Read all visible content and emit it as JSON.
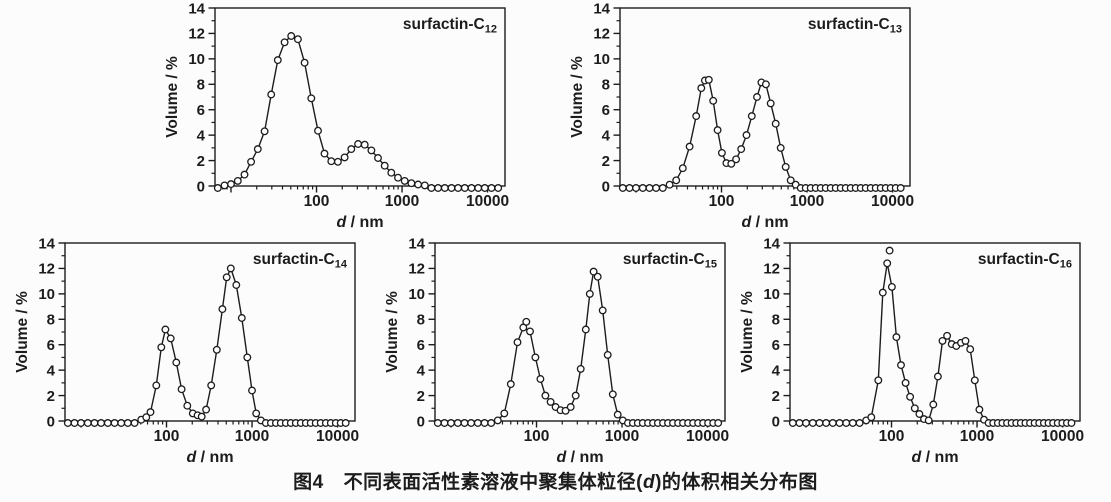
{
  "page": {
    "background": "#fcfcfc",
    "ink": "#1c1c1c"
  },
  "caption": {
    "label": "图4",
    "text_pre": "不同表面活性素溶液中聚集体粒径(",
    "d_symbol": "d",
    "text_post": ")的体积相关分布图"
  },
  "axes_common": {
    "ylabel": "Volume / %",
    "xlabel_d": "d",
    "xlabel_rest": " / nm",
    "yticks": [
      0,
      2,
      4,
      6,
      8,
      10,
      12,
      14
    ],
    "ytick_minor": [
      1,
      3,
      5,
      7,
      9,
      11,
      13
    ],
    "xtick_labeled": [
      100,
      1000,
      10000
    ],
    "xtick_major": [
      10,
      100,
      1000,
      10000
    ],
    "ylim": [
      0,
      14
    ],
    "xlim": [
      6.5,
      16000
    ],
    "xscale": "log",
    "grid": false,
    "marker": "open-circle"
  },
  "chart_data": [
    {
      "type": "line+scatter",
      "title_base": "surfactin-C",
      "title_sub": "12",
      "points": [
        [
          7,
          0
        ],
        [
          8.4,
          0.05
        ],
        [
          10,
          0.15
        ],
        [
          12,
          0.4
        ],
        [
          14.4,
          0.9
        ],
        [
          17.2,
          1.9
        ],
        [
          20.6,
          2.9
        ],
        [
          24.7,
          4.3
        ],
        [
          29.5,
          7.2
        ],
        [
          35.3,
          9.9
        ],
        [
          42.3,
          11.3
        ],
        [
          50.6,
          11.8
        ],
        [
          60.6,
          11.55
        ],
        [
          72.5,
          9.7
        ],
        [
          86.8,
          6.9
        ],
        [
          104,
          4.35
        ],
        [
          124,
          2.55
        ],
        [
          149,
          1.95
        ],
        [
          178,
          1.9
        ],
        [
          213,
          2.25
        ],
        [
          255,
          2.9
        ],
        [
          306,
          3.3
        ],
        [
          366,
          3.25
        ],
        [
          438,
          2.8
        ],
        [
          524,
          2.2
        ],
        [
          627,
          1.6
        ],
        [
          750,
          1.05
        ],
        [
          898,
          0.65
        ],
        [
          1075,
          0.4
        ],
        [
          1287,
          0.22
        ],
        [
          1540,
          0.12
        ],
        [
          1844,
          0.05
        ],
        [
          2207,
          0
        ],
        [
          2642,
          0
        ],
        [
          3162,
          0
        ],
        [
          3785,
          0
        ],
        [
          4530,
          0
        ],
        [
          5423,
          0
        ],
        [
          6491,
          0
        ],
        [
          7769,
          0
        ],
        [
          9299,
          0
        ],
        [
          11131,
          0
        ],
        [
          13323,
          0
        ]
      ],
      "outliers": []
    },
    {
      "type": "line+scatter",
      "title_base": "surfactin-C",
      "title_sub": "13",
      "points": [
        [
          7,
          0
        ],
        [
          8.4,
          0
        ],
        [
          10,
          0
        ],
        [
          12,
          0
        ],
        [
          14.4,
          0
        ],
        [
          17.2,
          0
        ],
        [
          20.6,
          0
        ],
        [
          24.7,
          0.1
        ],
        [
          29.5,
          0.45
        ],
        [
          35.3,
          1.4
        ],
        [
          42.3,
          3.1
        ],
        [
          50.6,
          5.5
        ],
        [
          58,
          7.7
        ],
        [
          64,
          8.3
        ],
        [
          71,
          8.35
        ],
        [
          80,
          6.7
        ],
        [
          90,
          4.4
        ],
        [
          101,
          2.6
        ],
        [
          114,
          1.8
        ],
        [
          130,
          1.75
        ],
        [
          148,
          2.1
        ],
        [
          170,
          2.9
        ],
        [
          196,
          4.0
        ],
        [
          226,
          5.5
        ],
        [
          260,
          7.0
        ],
        [
          293,
          8.15
        ],
        [
          330,
          8.0
        ],
        [
          376,
          6.5
        ],
        [
          430,
          4.9
        ],
        [
          492,
          3.0
        ],
        [
          563,
          1.5
        ],
        [
          644,
          0.45
        ],
        [
          737,
          0.1
        ],
        [
          843,
          0
        ],
        [
          965,
          0
        ],
        [
          1104,
          0
        ],
        [
          1263,
          0
        ],
        [
          1445,
          0
        ],
        [
          1653,
          0
        ],
        [
          1891,
          0
        ],
        [
          2164,
          0
        ],
        [
          2476,
          0
        ],
        [
          2832,
          0
        ],
        [
          3240,
          0
        ],
        [
          3707,
          0
        ],
        [
          4241,
          0
        ],
        [
          4852,
          0
        ],
        [
          5551,
          0
        ],
        [
          6351,
          0
        ],
        [
          7266,
          0
        ],
        [
          8313,
          0
        ],
        [
          9510,
          0
        ],
        [
          10880,
          0
        ],
        [
          12448,
          0
        ]
      ],
      "outliers": []
    },
    {
      "type": "line+scatter",
      "title_base": "surfactin-C",
      "title_sub": "14",
      "points": [
        [
          7,
          0
        ],
        [
          8.4,
          0
        ],
        [
          10,
          0
        ],
        [
          12,
          0
        ],
        [
          14.4,
          0
        ],
        [
          17.2,
          0
        ],
        [
          20.6,
          0
        ],
        [
          24.7,
          0
        ],
        [
          29.5,
          0
        ],
        [
          35.3,
          0
        ],
        [
          42.3,
          0
        ],
        [
          50.6,
          0.1
        ],
        [
          58,
          0.3
        ],
        [
          65,
          0.7
        ],
        [
          76,
          2.8
        ],
        [
          87,
          5.8
        ],
        [
          97,
          7.2
        ],
        [
          112,
          6.5
        ],
        [
          130,
          4.6
        ],
        [
          150,
          2.5
        ],
        [
          175,
          1.2
        ],
        [
          203,
          0.6
        ],
        [
          231,
          0.45
        ],
        [
          258,
          0.35
        ],
        [
          290,
          0.9
        ],
        [
          333,
          2.8
        ],
        [
          387,
          5.6
        ],
        [
          450,
          8.8
        ],
        [
          505,
          11.3
        ],
        [
          565,
          12.0
        ],
        [
          655,
          10.7
        ],
        [
          760,
          8.1
        ],
        [
          880,
          5.0
        ],
        [
          1000,
          2.4
        ],
        [
          1120,
          0.6
        ],
        [
          1270,
          0.05
        ],
        [
          1450,
          0
        ],
        [
          1660,
          0
        ],
        [
          1900,
          0
        ],
        [
          2170,
          0
        ],
        [
          2480,
          0
        ],
        [
          2840,
          0
        ],
        [
          3250,
          0
        ],
        [
          3720,
          0
        ],
        [
          4250,
          0
        ],
        [
          4860,
          0
        ],
        [
          5560,
          0
        ],
        [
          6360,
          0
        ],
        [
          7280,
          0
        ],
        [
          8330,
          0
        ],
        [
          9530,
          0
        ],
        [
          10900,
          0
        ],
        [
          12470,
          0
        ]
      ],
      "outliers": []
    },
    {
      "type": "line+scatter",
      "title_base": "surfactin-C",
      "title_sub": "15",
      "points": [
        [
          7,
          0
        ],
        [
          8.4,
          0
        ],
        [
          10,
          0
        ],
        [
          12,
          0
        ],
        [
          14.4,
          0
        ],
        [
          17.2,
          0
        ],
        [
          20.6,
          0
        ],
        [
          24.7,
          0
        ],
        [
          29.5,
          0
        ],
        [
          35.3,
          0.05
        ],
        [
          42,
          0.6
        ],
        [
          50,
          2.9
        ],
        [
          60,
          6.2
        ],
        [
          70,
          7.35
        ],
        [
          84,
          7.05
        ],
        [
          97,
          5.0
        ],
        [
          111,
          3.3
        ],
        [
          127,
          2.0
        ],
        [
          146,
          1.5
        ],
        [
          167,
          1.1
        ],
        [
          191,
          0.85
        ],
        [
          219,
          0.8
        ],
        [
          251,
          1.1
        ],
        [
          287,
          2.0
        ],
        [
          329,
          4.1
        ],
        [
          377,
          7.2
        ],
        [
          420,
          10.0
        ],
        [
          465,
          11.75
        ],
        [
          520,
          11.35
        ],
        [
          595,
          8.7
        ],
        [
          680,
          5.2
        ],
        [
          780,
          2.1
        ],
        [
          890,
          0.5
        ],
        [
          1020,
          0.05
        ],
        [
          1170,
          0
        ],
        [
          1340,
          0
        ],
        [
          1530,
          0
        ],
        [
          1750,
          0
        ],
        [
          2010,
          0
        ],
        [
          2300,
          0
        ],
        [
          2630,
          0
        ],
        [
          3010,
          0
        ],
        [
          3450,
          0
        ],
        [
          3950,
          0
        ],
        [
          4520,
          0
        ],
        [
          5170,
          0
        ],
        [
          5920,
          0
        ],
        [
          6780,
          0
        ],
        [
          7760,
          0
        ],
        [
          8880,
          0
        ],
        [
          10160,
          0
        ],
        [
          11630,
          0
        ],
        [
          13310,
          0
        ]
      ],
      "outliers": [
        [
          76,
          7.8
        ]
      ]
    },
    {
      "type": "line+scatter",
      "title_base": "surfactin-C",
      "title_sub": "16",
      "points": [
        [
          7,
          0
        ],
        [
          8.4,
          0
        ],
        [
          10,
          0
        ],
        [
          12,
          0
        ],
        [
          14.4,
          0
        ],
        [
          17.2,
          0
        ],
        [
          20.6,
          0
        ],
        [
          24.7,
          0
        ],
        [
          29.5,
          0
        ],
        [
          35.3,
          0
        ],
        [
          42.3,
          0
        ],
        [
          50.6,
          0.05
        ],
        [
          58,
          0.3
        ],
        [
          70,
          3.2
        ],
        [
          79,
          10.1
        ],
        [
          89,
          12.4
        ],
        [
          101,
          10.55
        ],
        [
          114,
          6.6
        ],
        [
          129,
          4.4
        ],
        [
          146,
          3.0
        ],
        [
          165,
          1.9
        ],
        [
          187,
          1.0
        ],
        [
          212,
          0.55
        ],
        [
          240,
          0.15
        ],
        [
          272,
          0.05
        ],
        [
          308,
          1.3
        ],
        [
          349,
          3.5
        ],
        [
          395,
          6.3
        ],
        [
          447,
          6.7
        ],
        [
          506,
          6.05
        ],
        [
          573,
          5.9
        ],
        [
          649,
          6.15
        ],
        [
          734,
          6.3
        ],
        [
          831,
          5.65
        ],
        [
          941,
          3.2
        ],
        [
          1065,
          0.9
        ],
        [
          1206,
          0.1
        ],
        [
          1365,
          0
        ],
        [
          1545,
          0
        ],
        [
          1749,
          0
        ],
        [
          1980,
          0
        ],
        [
          2242,
          0
        ],
        [
          2538,
          0
        ],
        [
          2873,
          0
        ],
        [
          3252,
          0
        ],
        [
          3681,
          0
        ],
        [
          4167,
          0
        ],
        [
          4717,
          0
        ],
        [
          5340,
          0
        ],
        [
          6045,
          0
        ],
        [
          6843,
          0
        ],
        [
          7746,
          0
        ],
        [
          8769,
          0
        ],
        [
          9926,
          0
        ],
        [
          11236,
          0
        ],
        [
          12719,
          0
        ]
      ],
      "outliers": [
        [
          95,
          13.4
        ]
      ]
    }
  ]
}
